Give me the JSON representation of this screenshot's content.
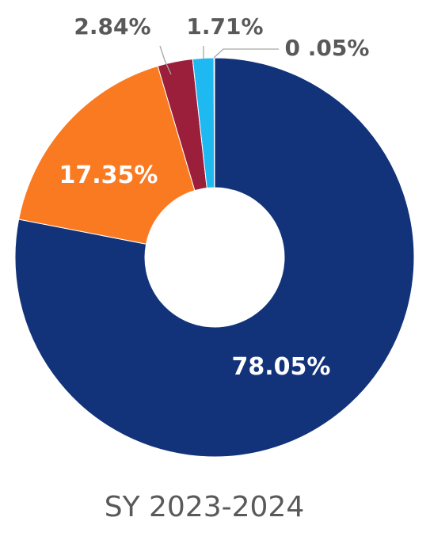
{
  "chart_data": {
    "type": "pie",
    "variant": "donut",
    "caption": "SY 2023-2024",
    "slices": [
      {
        "label": "78.05%",
        "value": 78.05,
        "color": "#12337a"
      },
      {
        "label": "17.35%",
        "value": 17.35,
        "color": "#fa7a22"
      },
      {
        "label": "2.84%",
        "value": 2.84,
        "color": "#9b1e3a"
      },
      {
        "label": "1.71%",
        "value": 1.71,
        "color": "#1fb9f1"
      },
      {
        "label": "0 .05%",
        "value": 0.05,
        "color": "#e5e15a"
      }
    ],
    "legend": "none"
  }
}
